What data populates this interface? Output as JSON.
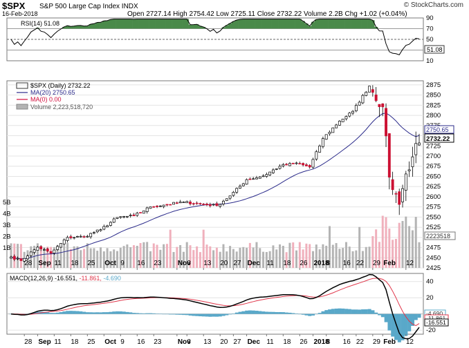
{
  "header": {
    "symbol": "$SPX",
    "name": "S&P 500 Large Cap Index",
    "exchange": "INDX",
    "date": "16-Feb-2018",
    "ohlc": "Open 2727.14  High 2754.42  Low 2725.11  Close 2732.22  Volume 2.2B  Chg +1.02 (+0.04%)",
    "credit": "© StockCharts.com"
  },
  "colors": {
    "up": "#ffffff",
    "down": "#cc1133",
    "ma20": "#2a2a8a",
    "ma0": "#d10b3a",
    "vol_up": "#b4b4b4",
    "vol_down": "#f0b0bc",
    "rsi_fill": "#4a8a4a",
    "macd_line": "#000000",
    "signal_line": "#e0364a",
    "hist": "#59a8c9"
  },
  "rsi_panel": {
    "legend": "RSI(14) 51.08",
    "tick_labels": [
      "90",
      "70",
      "50",
      "30",
      "10"
    ],
    "last_value_tag": "51.08"
  },
  "price_panel": {
    "legend": {
      "price": "$SPX (Daily) 2732.22",
      "ma20": "MA(20) 2750.65",
      "ma0": "MA(0) 0.00",
      "volume": "Volume 2,223,518,720"
    },
    "tick_labels": [
      "2875",
      "2850",
      "2825",
      "2800",
      "2775",
      "2750",
      "2725",
      "2700",
      "2675",
      "2650",
      "2625",
      "2600",
      "2575",
      "2550",
      "2525",
      "2500",
      "2475",
      "2450",
      "2425"
    ],
    "vol_tick_labels": [
      "5B",
      "4B",
      "3B",
      "2B",
      "1B"
    ],
    "tags": {
      "ma20": "2750.65",
      "close": "2732.22",
      "volume": "2223518"
    }
  },
  "macd_panel": {
    "legend_main": "MACD(12,26,9) -16.551, ",
    "legend_signal": "-11.861, ",
    "legend_hist": "-4.690",
    "tick_labels": [
      "40",
      "20",
      "0",
      "-20"
    ],
    "tags": {
      "hist": "-4.690",
      "signal": "-11.861",
      "macd": "-16.551"
    }
  },
  "x_axis": {
    "labels": [
      "28",
      "Sep",
      "11",
      "18",
      "25",
      "Oct",
      "9",
      "16",
      "23",
      "Nov",
      "6",
      "13",
      "20",
      "27",
      "Dec",
      "11",
      "18",
      "26",
      "2018",
      "8",
      "16",
      "22",
      "29",
      "Feb",
      "12"
    ]
  },
  "chart_data": {
    "type": "candlestick",
    "title": "$SPX S&P 500 Large Cap Index INDX",
    "date_range": [
      "2017-08-22",
      "2018-02-16"
    ],
    "price_ylim": [
      2425,
      2885
    ],
    "close_anchors": [
      [
        "2017-08-22",
        2452
      ],
      [
        "2017-08-25",
        2443
      ],
      [
        "2017-09-01",
        2476
      ],
      [
        "2017-09-08",
        2461
      ],
      [
        "2017-09-15",
        2500
      ],
      [
        "2017-09-22",
        2502
      ],
      [
        "2017-09-29",
        2519
      ],
      [
        "2017-10-06",
        2549
      ],
      [
        "2017-10-13",
        2553
      ],
      [
        "2017-10-20",
        2575
      ],
      [
        "2017-10-27",
        2581
      ],
      [
        "2017-11-03",
        2587
      ],
      [
        "2017-11-10",
        2582
      ],
      [
        "2017-11-17",
        2578
      ],
      [
        "2017-11-24",
        2602
      ],
      [
        "2017-12-01",
        2642
      ],
      [
        "2017-12-08",
        2651
      ],
      [
        "2017-12-15",
        2675
      ],
      [
        "2017-12-22",
        2683
      ],
      [
        "2017-12-29",
        2673
      ],
      [
        "2018-01-05",
        2743
      ],
      [
        "2018-01-12",
        2786
      ],
      [
        "2018-01-19",
        2810
      ],
      [
        "2018-01-26",
        2872
      ],
      [
        "2018-02-01",
        2821
      ],
      [
        "2018-02-05",
        2648
      ],
      [
        "2018-02-08",
        2581
      ],
      [
        "2018-02-09",
        2620
      ],
      [
        "2018-02-12",
        2656
      ],
      [
        "2018-02-14",
        2698
      ],
      [
        "2018-02-15",
        2731
      ],
      [
        "2018-02-16",
        2732
      ]
    ],
    "last_bar": {
      "open": 2727.14,
      "high": 2754.42,
      "low": 2725.11,
      "close": 2732.22,
      "volume": 2223518720
    },
    "ma20_last": 2750.65,
    "rsi14_last": 51.08,
    "rsi_ylim": [
      10,
      90
    ],
    "macd": {
      "params": "12,26,9",
      "macd": -16.551,
      "signal": -11.861,
      "histogram": -4.69,
      "ylim": [
        -25,
        50
      ]
    }
  }
}
